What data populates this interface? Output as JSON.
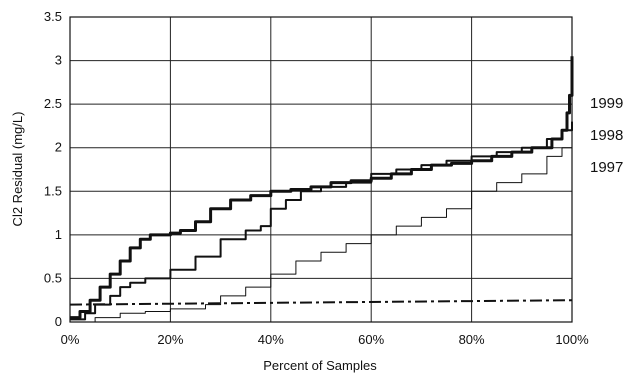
{
  "chart_data": {
    "type": "line",
    "title": "",
    "xlabel": "Percent of Samples",
    "ylabel": "Cl2 Residual (mg/L)",
    "xlim": [
      0,
      100
    ],
    "ylim": [
      0,
      3.5
    ],
    "x_ticks": [
      "0%",
      "20%",
      "40%",
      "60%",
      "80%",
      "100%"
    ],
    "y_ticks": [
      "0",
      "0.5",
      "1",
      "1.5",
      "2",
      "2.5",
      "3",
      "3.5"
    ],
    "grid": true,
    "legend": "direct labels at right end of series",
    "series": [
      {
        "name": "1999",
        "color": "#111111",
        "style": "thick",
        "x": [
          0,
          2,
          4,
          6,
          8,
          10,
          12,
          14,
          16,
          20,
          22,
          25,
          28,
          32,
          36,
          40,
          44,
          48,
          52,
          56,
          60,
          64,
          68,
          72,
          76,
          80,
          84,
          88,
          92,
          96,
          98,
          99,
          99.5,
          100
        ],
        "y": [
          0.05,
          0.12,
          0.25,
          0.4,
          0.55,
          0.7,
          0.85,
          0.95,
          1.0,
          1.02,
          1.05,
          1.15,
          1.3,
          1.4,
          1.45,
          1.5,
          1.52,
          1.55,
          1.6,
          1.62,
          1.65,
          1.7,
          1.75,
          1.8,
          1.82,
          1.85,
          1.9,
          1.95,
          2.0,
          2.1,
          2.2,
          2.4,
          2.6,
          3.05
        ]
      },
      {
        "name": "1998",
        "color": "#111111",
        "style": "medium",
        "x": [
          0,
          3,
          5,
          8,
          10,
          12,
          15,
          20,
          25,
          30,
          35,
          38,
          40,
          43,
          46,
          50,
          55,
          60,
          65,
          70,
          75,
          80,
          85,
          90,
          95,
          98,
          100
        ],
        "y": [
          0.03,
          0.1,
          0.2,
          0.3,
          0.4,
          0.45,
          0.5,
          0.6,
          0.75,
          0.95,
          1.05,
          1.1,
          1.3,
          1.4,
          1.5,
          1.55,
          1.6,
          1.7,
          1.75,
          1.8,
          1.85,
          1.9,
          1.95,
          2.0,
          2.1,
          2.2,
          2.3
        ]
      },
      {
        "name": "1997",
        "color": "#111111",
        "style": "thin",
        "x": [
          0,
          5,
          10,
          15,
          20,
          25,
          27,
          30,
          35,
          40,
          45,
          50,
          55,
          60,
          65,
          70,
          75,
          80,
          85,
          90,
          95,
          98,
          100
        ],
        "y": [
          0.0,
          0.05,
          0.1,
          0.12,
          0.15,
          0.15,
          0.2,
          0.3,
          0.4,
          0.55,
          0.7,
          0.8,
          0.9,
          1.0,
          1.1,
          1.2,
          1.3,
          1.5,
          1.6,
          1.7,
          1.9,
          2.0,
          2.1
        ]
      },
      {
        "name": "",
        "color": "#111111",
        "style": "dash-dot",
        "x": [
          0,
          100
        ],
        "y": [
          0.2,
          0.25
        ]
      }
    ]
  }
}
